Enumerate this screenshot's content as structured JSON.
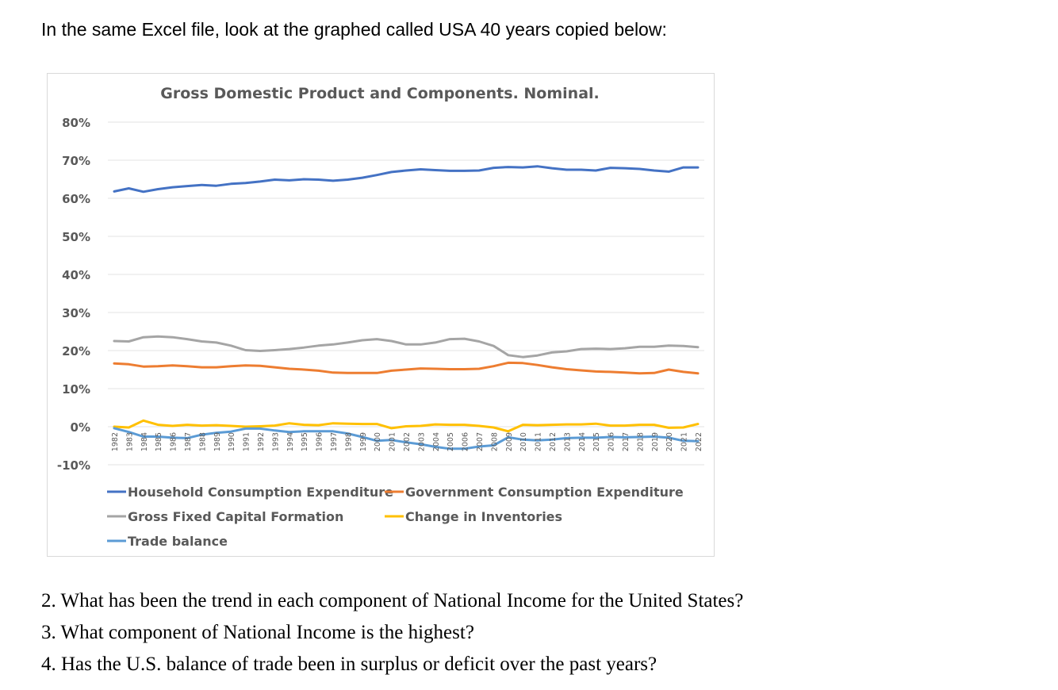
{
  "intro_text": "In the same Excel file, look at the graphed called USA 40 years copied below:",
  "questions": [
    "2. What has been the trend in each component of National Income for the United States?",
    "3. What component of National Income is the highest?",
    "4. Has the U.S. balance of trade been in surplus or deficit over the past years?"
  ],
  "chart_data": {
    "type": "line",
    "title": "Gross Domestic Product and Components. Nominal.",
    "xlabel": "",
    "ylabel": "",
    "ylim": [
      -10,
      80
    ],
    "y_ticks": [
      80,
      70,
      60,
      50,
      40,
      30,
      20,
      10,
      0,
      -10
    ],
    "y_tick_labels": [
      "80%",
      "70%",
      "60%",
      "50%",
      "40%",
      "30%",
      "20%",
      "10%",
      "0%",
      "-10%"
    ],
    "grid": true,
    "legend_position": "bottom",
    "categories": [
      "1982",
      "1983",
      "1984",
      "1985",
      "1986",
      "1987",
      "1988",
      "1989",
      "1990",
      "1991",
      "1992",
      "1993",
      "1994",
      "1995",
      "1996",
      "1997",
      "1998",
      "1999",
      "2000",
      "2001",
      "2002",
      "2003",
      "2004",
      "2005",
      "2006",
      "2007",
      "2008",
      "2009",
      "2010",
      "2011",
      "2012",
      "2013",
      "2014",
      "2015",
      "2016",
      "2017",
      "2018",
      "2019",
      "2020",
      "2021",
      "2022"
    ],
    "series": [
      {
        "name": "Household Consumption Expenditure",
        "color": "#4472c4",
        "values": [
          61.8,
          62.6,
          61.7,
          62.4,
          62.9,
          63.2,
          63.5,
          63.3,
          63.8,
          64.0,
          64.4,
          64.9,
          64.7,
          65.0,
          64.9,
          64.6,
          64.9,
          65.4,
          66.1,
          66.9,
          67.3,
          67.6,
          67.4,
          67.2,
          67.2,
          67.3,
          68.0,
          68.2,
          68.1,
          68.4,
          67.9,
          67.5,
          67.5,
          67.3,
          68.0,
          67.9,
          67.7,
          67.3,
          67.0,
          68.1,
          68.1
        ]
      },
      {
        "name": "Government Consumption Expenditure",
        "color": "#ed7d31",
        "values": [
          16.6,
          16.4,
          15.8,
          15.9,
          16.1,
          15.9,
          15.6,
          15.6,
          15.9,
          16.1,
          16.0,
          15.6,
          15.2,
          15.0,
          14.7,
          14.2,
          14.1,
          14.1,
          14.1,
          14.7,
          15.0,
          15.3,
          15.2,
          15.1,
          15.1,
          15.2,
          15.9,
          16.8,
          16.7,
          16.2,
          15.6,
          15.1,
          14.8,
          14.5,
          14.4,
          14.2,
          14.0,
          14.1,
          15.0,
          14.4,
          14.0
        ]
      },
      {
        "name": "Gross Fixed Capital Formation",
        "color": "#a5a5a5",
        "values": [
          22.5,
          22.4,
          23.5,
          23.7,
          23.5,
          23.0,
          22.4,
          22.1,
          21.3,
          20.1,
          19.9,
          20.1,
          20.4,
          20.8,
          21.3,
          21.6,
          22.1,
          22.7,
          23.0,
          22.5,
          21.6,
          21.6,
          22.1,
          23.0,
          23.1,
          22.4,
          21.2,
          18.8,
          18.3,
          18.7,
          19.5,
          19.8,
          20.4,
          20.5,
          20.4,
          20.6,
          21.0,
          21.0,
          21.3,
          21.2,
          20.9
        ]
      },
      {
        "name": "Change in Inventories",
        "color": "#ffc000",
        "values": [
          0.0,
          -0.2,
          1.6,
          0.5,
          0.2,
          0.5,
          0.3,
          0.4,
          0.2,
          0.0,
          0.1,
          0.3,
          0.9,
          0.5,
          0.4,
          0.9,
          0.8,
          0.7,
          0.7,
          -0.4,
          0.1,
          0.2,
          0.6,
          0.5,
          0.5,
          0.2,
          -0.2,
          -1.2,
          0.5,
          0.4,
          0.5,
          0.6,
          0.6,
          0.8,
          0.3,
          0.3,
          0.5,
          0.5,
          -0.3,
          -0.2,
          0.7
        ]
      },
      {
        "name": "Trade balance",
        "color": "#5b9bd5",
        "values": [
          -0.4,
          -1.4,
          -2.6,
          -2.6,
          -2.9,
          -3.0,
          -2.1,
          -1.6,
          -1.3,
          -0.5,
          -0.5,
          -1.0,
          -1.4,
          -1.2,
          -1.2,
          -1.2,
          -1.8,
          -2.7,
          -3.7,
          -3.5,
          -4.1,
          -4.6,
          -5.3,
          -5.8,
          -5.8,
          -5.2,
          -4.9,
          -2.8,
          -3.4,
          -3.6,
          -3.4,
          -3.0,
          -2.9,
          -2.9,
          -2.7,
          -2.8,
          -2.7,
          -2.6,
          -2.9,
          -3.7,
          -3.8
        ]
      }
    ]
  }
}
